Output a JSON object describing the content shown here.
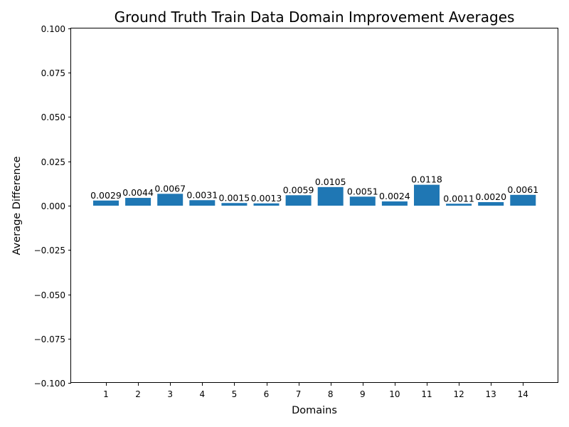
{
  "chart_data": {
    "type": "bar",
    "title": "Ground Truth Train Data Domain Improvement Averages",
    "xlabel": "Domains",
    "ylabel": "Average Difference",
    "categories": [
      "1",
      "2",
      "3",
      "4",
      "5",
      "6",
      "7",
      "8",
      "9",
      "10",
      "11",
      "12",
      "13",
      "14"
    ],
    "values": [
      0.0029,
      0.0044,
      0.0067,
      0.0031,
      0.0015,
      0.0013,
      0.0059,
      0.0105,
      0.0051,
      0.0024,
      0.0118,
      0.0011,
      0.002,
      0.0061
    ],
    "data_labels": [
      "0.0029",
      "0.0044",
      "0.0067",
      "0.0031",
      "0.0015",
      "0.0013",
      "0.0059",
      "0.0105",
      "0.0051",
      "0.0024",
      "0.0118",
      "0.0011",
      "0.0020",
      "0.0061"
    ],
    "ylim": [
      -0.1,
      0.1
    ],
    "yticks": [
      -0.1,
      -0.075,
      -0.05,
      -0.025,
      0,
      0.025,
      0.05,
      0.075,
      0.1
    ],
    "ytick_labels": [
      "−0.100",
      "−0.075",
      "−0.050",
      "−0.025",
      "0.000",
      "0.025",
      "0.050",
      "0.075",
      "0.100"
    ],
    "grid": false,
    "legend": "none",
    "colors": {
      "bar": "#1f77b4",
      "axis": "#000000",
      "background": "#ffffff"
    }
  }
}
